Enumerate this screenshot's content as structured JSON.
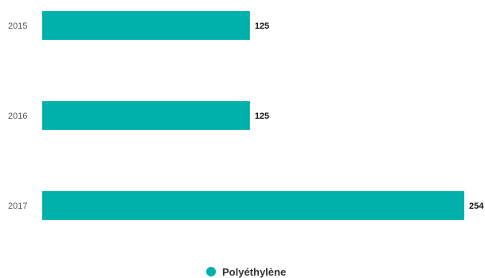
{
  "chart_data": {
    "type": "bar",
    "orientation": "horizontal",
    "categories": [
      "2015",
      "2016",
      "2017"
    ],
    "series": [
      {
        "name": "Polyéthylène",
        "values": [
          125,
          125,
          254
        ],
        "color": "#00b0ab"
      }
    ],
    "value_labels": [
      "125",
      "125",
      "254"
    ],
    "xlim": [
      0,
      254
    ],
    "grid": false,
    "legend": "bottom-center",
    "title": "",
    "xlabel": "",
    "ylabel": ""
  }
}
